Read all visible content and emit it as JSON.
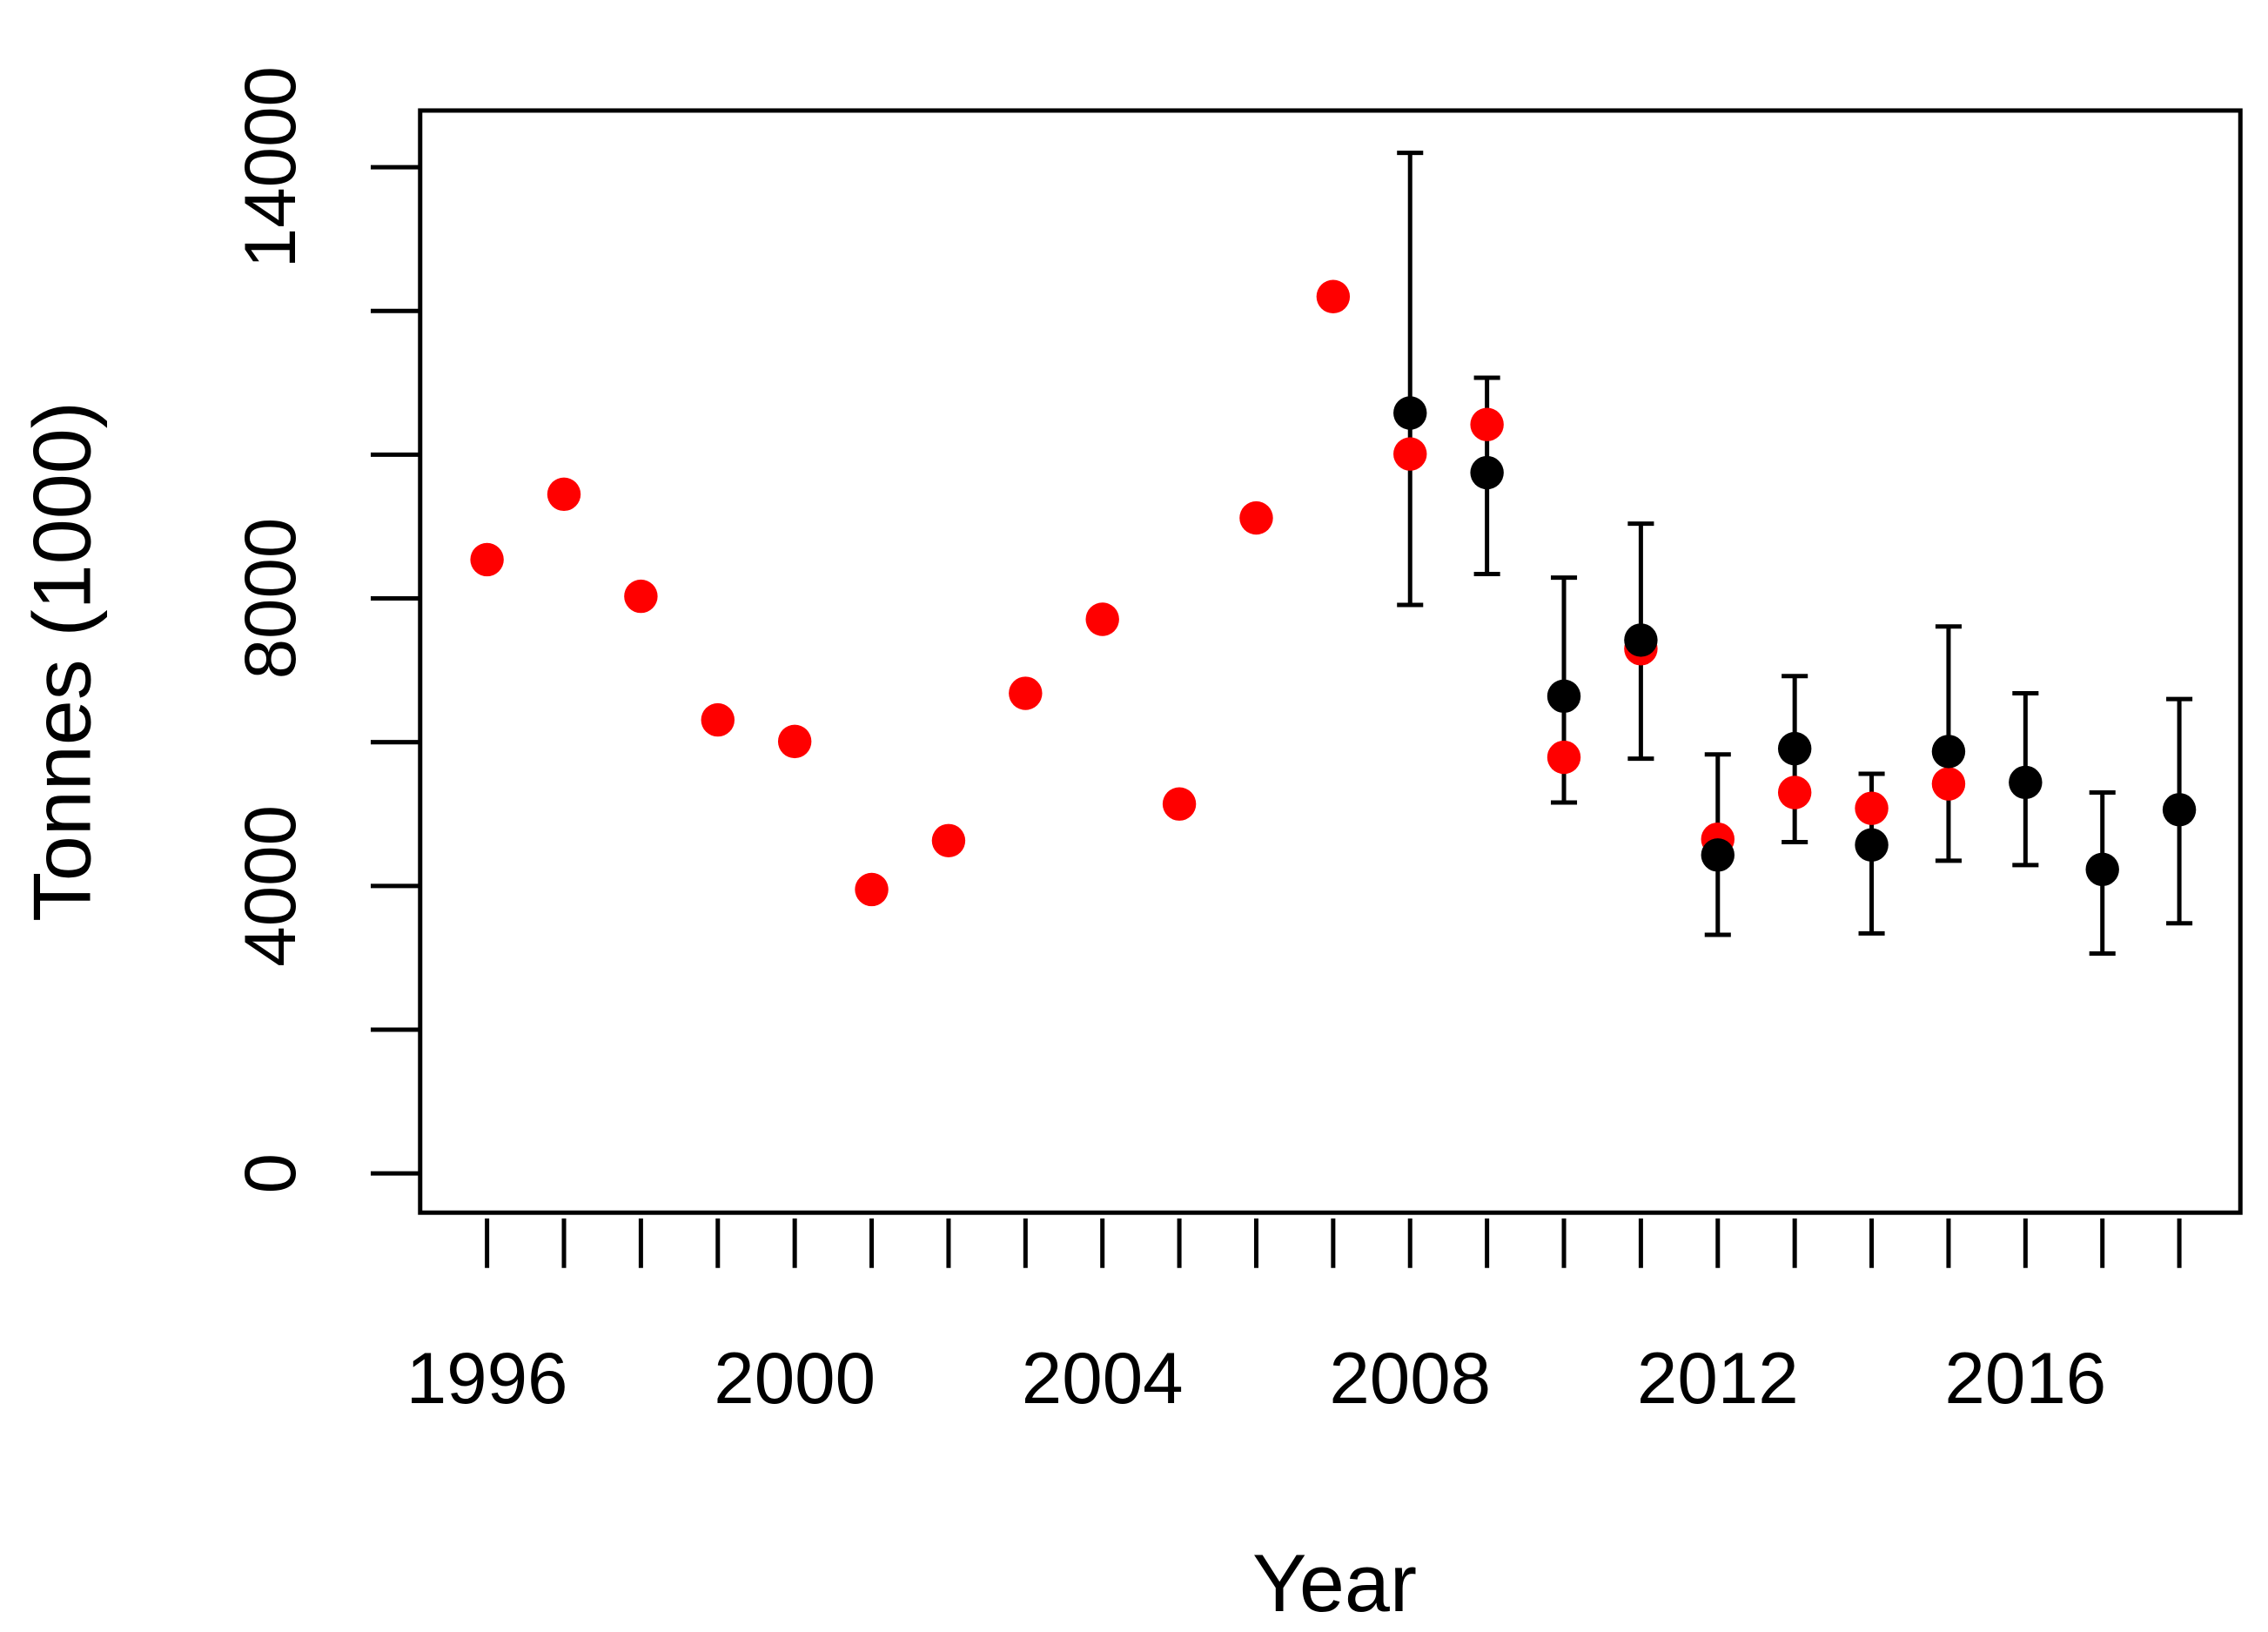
{
  "chart_data": {
    "type": "scatter",
    "title": "",
    "xlabel": "Year",
    "ylabel": "Tonnes (1000)",
    "xlim": [
      1995.1,
      2018.8
    ],
    "ylim": [
      -550,
      14800
    ],
    "x_ticks": [
      1996,
      1997,
      1998,
      1999,
      2000,
      2001,
      2002,
      2003,
      2004,
      2005,
      2006,
      2007,
      2008,
      2009,
      2010,
      2011,
      2012,
      2013,
      2014,
      2015,
      2016,
      2017,
      2018
    ],
    "x_tick_labels": [
      "1996",
      "2000",
      "2004",
      "2008",
      "2012",
      "2016"
    ],
    "y_ticks": [
      0,
      2000,
      4000,
      6000,
      8000,
      10000,
      12000,
      14000
    ],
    "y_tick_labels": [
      "0",
      "4000",
      "8000",
      "14000"
    ],
    "grid": false,
    "series": [
      {
        "color": "#ff0000",
        "x": [
          1996,
          1997,
          1998,
          1999,
          2000,
          2001,
          2002,
          2003,
          2004,
          2005,
          2006,
          2007,
          2008,
          2009,
          2010,
          2011,
          2012,
          2013,
          2014,
          2015
        ],
        "y": [
          8540,
          9450,
          8030,
          6310,
          6010,
          3950,
          4630,
          6680,
          7710,
          5140,
          9120,
          12200,
          10010,
          10420,
          5790,
          7300,
          4650,
          5300,
          5080,
          5420
        ]
      },
      {
        "color": "#000000",
        "x": [
          2008,
          2009,
          2010,
          2011,
          2012,
          2013,
          2014,
          2015,
          2016,
          2017,
          2018
        ],
        "y": [
          10580,
          9750,
          6640,
          7420,
          4430,
          5910,
          4570,
          5870,
          5440,
          4230,
          5060
        ],
        "upper": [
          14200,
          11070,
          8290,
          9040,
          5830,
          6920,
          5560,
          7610,
          6680,
          5300,
          6600
        ],
        "lower": [
          7910,
          8340,
          5160,
          5770,
          3320,
          4610,
          3340,
          4350,
          4290,
          3060,
          3480
        ]
      }
    ]
  }
}
